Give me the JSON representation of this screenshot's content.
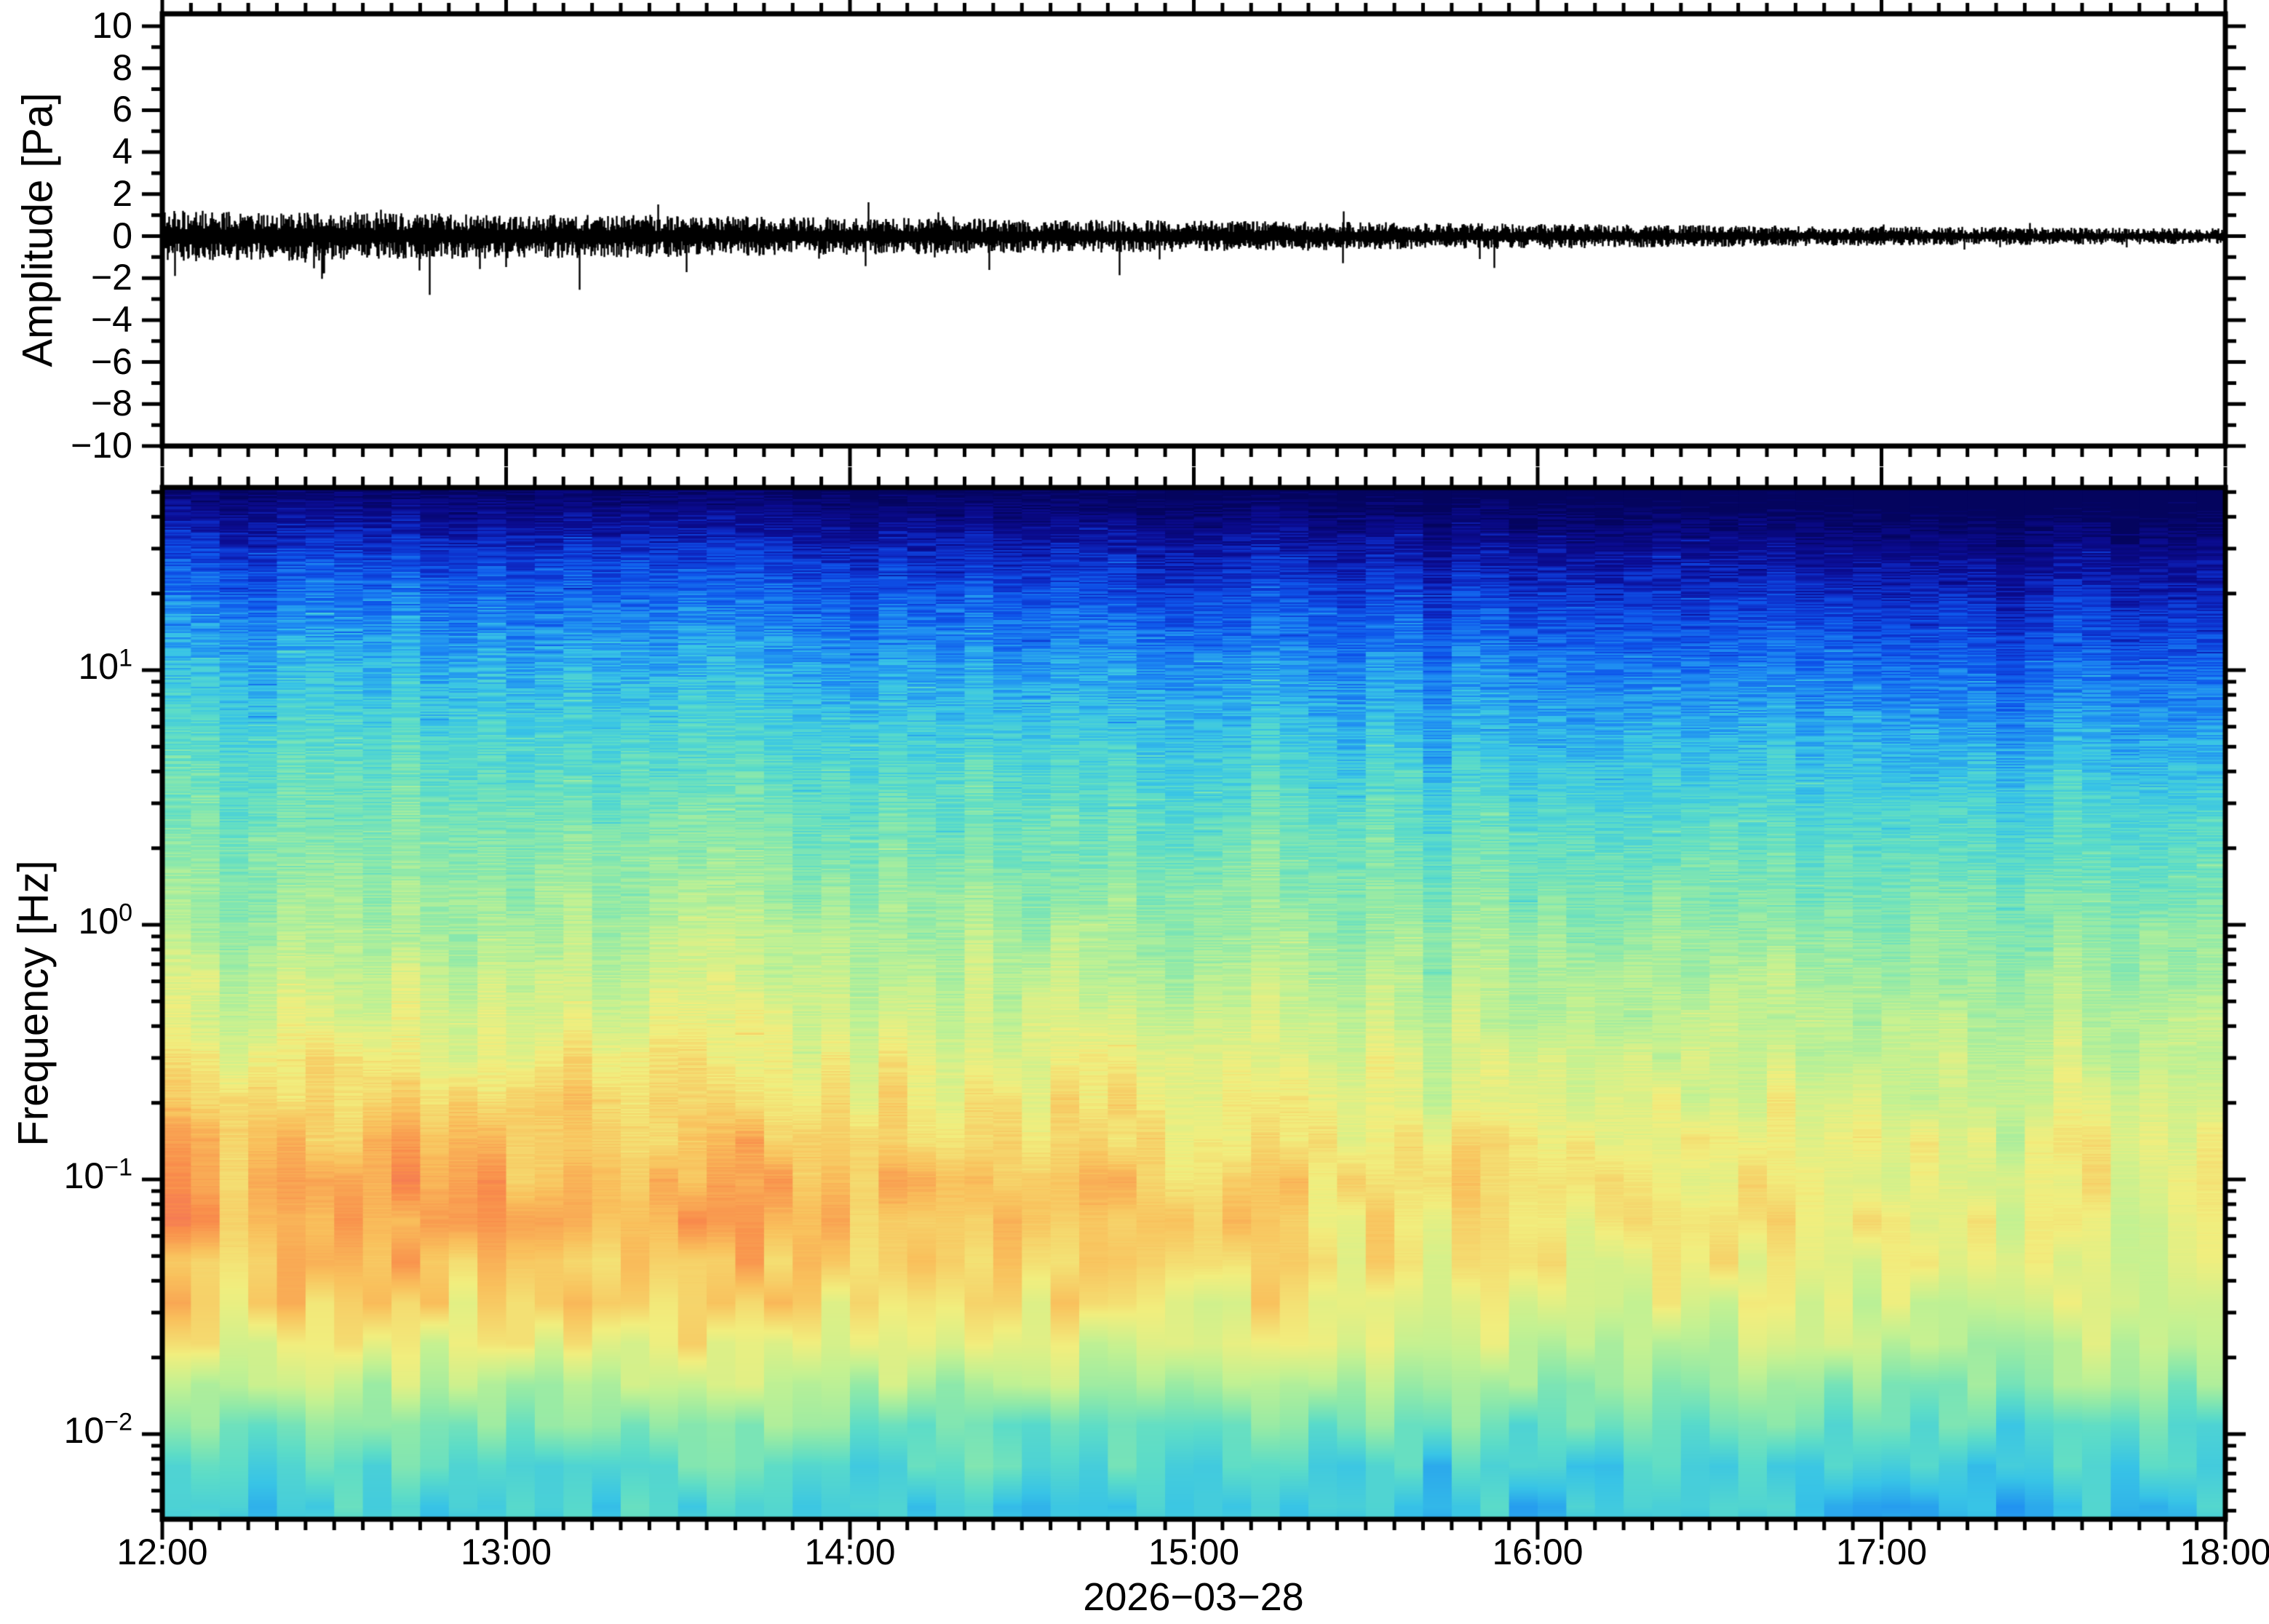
{
  "figure": {
    "background": "#ffffff",
    "frame_color": "#000000"
  },
  "top_panel": {
    "ylabel": "Amplitude [Pa]",
    "ytick_labels": [
      "10",
      "8",
      "6",
      "4",
      "2",
      "0",
      "−2",
      "−4",
      "−6",
      "−8",
      "−10"
    ],
    "ytick_values": [
      10,
      8,
      6,
      4,
      2,
      0,
      -2,
      -4,
      -6,
      -8,
      -10
    ]
  },
  "bottom_panel": {
    "ylabel": "Frequency [Hz]",
    "ytick_labels": [
      {
        "mantissa": "10",
        "exponent": "1",
        "value": 10
      },
      {
        "mantissa": "10",
        "exponent": "0",
        "value": 1
      },
      {
        "mantissa": "10",
        "exponent": "−1",
        "value": 0.1
      },
      {
        "mantissa": "10",
        "exponent": "−2",
        "value": 0.01
      }
    ]
  },
  "xaxis": {
    "tick_labels": [
      "12:00",
      "13:00",
      "14:00",
      "15:00",
      "16:00",
      "17:00",
      "18:00"
    ],
    "tick_hours": [
      12,
      13,
      14,
      15,
      16,
      17,
      18
    ],
    "minor_tick_minutes": 5,
    "date_label": "2026−03−28"
  },
  "chart_data": [
    {
      "type": "line",
      "name": "infrasound-waveform",
      "title": "",
      "xlabel": "",
      "ylabel": "Amplitude [Pa]",
      "ylim": [
        -10,
        10
      ],
      "x_range_hours": [
        12,
        18
      ],
      "x_date": "2026-03-28",
      "line_color": "#000000",
      "description": "Continuous band-limited noise trace centred on 0 Pa; envelope decays smoothly through the afternoon with occasional spikes to about ±2.8 Pa early on",
      "envelope_peak_pa": [
        [
          12,
          1.7
        ],
        [
          12.5,
          1.55
        ],
        [
          13,
          1.45
        ],
        [
          13.5,
          1.35
        ],
        [
          14,
          1.2
        ],
        [
          14.5,
          1.1
        ],
        [
          15,
          1.0
        ],
        [
          15.5,
          0.9
        ],
        [
          16,
          0.8
        ],
        [
          16.5,
          0.7
        ],
        [
          17,
          0.63
        ],
        [
          17.5,
          0.56
        ],
        [
          18,
          0.5
        ]
      ],
      "sigma_factor": 0.33,
      "spike_probability": 0.012,
      "max_spike_pa": 2.8
    },
    {
      "type": "heatmap",
      "name": "spectrogram",
      "title": "",
      "xlabel": "",
      "ylabel": "Frequency [Hz]",
      "yscale": "log",
      "ylim_hz": [
        0.0046,
        52
      ],
      "x_range_hours": [
        12,
        18
      ],
      "time_bin_minutes": 5,
      "legend": "none",
      "grid": false,
      "description": "Relative spectral power 0-1: broad maximum (red) at 0.03-0.3 Hz strongest before 15:00, power decreasing with frequency to deep navy above ~25 Hz; high-frequency dark band deepens with time; low-frequency floor below 0.015 Hz falls back to green/cyan",
      "power_profile_log10f_vs_value": [
        [
          -2.34,
          0.5
        ],
        [
          -2.1,
          0.56
        ],
        [
          -1.9,
          0.65
        ],
        [
          -1.7,
          0.77
        ],
        [
          -1.45,
          0.86
        ],
        [
          -1.1,
          0.92
        ],
        [
          -0.8,
          0.87
        ],
        [
          -0.5,
          0.79
        ],
        [
          -0.1,
          0.7
        ],
        [
          0.3,
          0.625
        ],
        [
          0.7,
          0.545
        ],
        [
          1.0,
          0.47
        ],
        [
          1.25,
          0.38
        ],
        [
          1.45,
          0.28
        ],
        [
          1.6,
          0.16
        ],
        [
          1.72,
          0.05
        ]
      ],
      "time_fade": {
        "mid_band": {
          "amount": 0.11,
          "center_log10f": -1.15,
          "width": 0.75
        },
        "high_band": {
          "amount": 0.14,
          "center_log10f": 0.6,
          "width": 0.35
        },
        "overall": 0.03
      },
      "noise": {
        "striation": 0.13,
        "smooth_block": 0.11,
        "column": 0.05
      },
      "column_anomalies_hour_dv": [
        [
          12.25,
          -0.045
        ],
        [
          15.73,
          -0.075
        ],
        [
          16.21,
          -0.04
        ],
        [
          17.34,
          -0.05
        ]
      ],
      "colormap_stops": [
        [
          0.0,
          "#04045e"
        ],
        [
          0.07,
          "#08087d"
        ],
        [
          0.14,
          "#0b0c91"
        ],
        [
          0.22,
          "#0d2cc8"
        ],
        [
          0.3,
          "#0e55ea"
        ],
        [
          0.38,
          "#1e8cf2"
        ],
        [
          0.46,
          "#38c4e6"
        ],
        [
          0.54,
          "#5cdcc8"
        ],
        [
          0.62,
          "#8fe9a9"
        ],
        [
          0.7,
          "#c3f192"
        ],
        [
          0.78,
          "#f1ee7e"
        ],
        [
          0.86,
          "#f9c05c"
        ],
        [
          0.93,
          "#f98d4b"
        ],
        [
          1.0,
          "#ee5c63"
        ]
      ]
    }
  ]
}
